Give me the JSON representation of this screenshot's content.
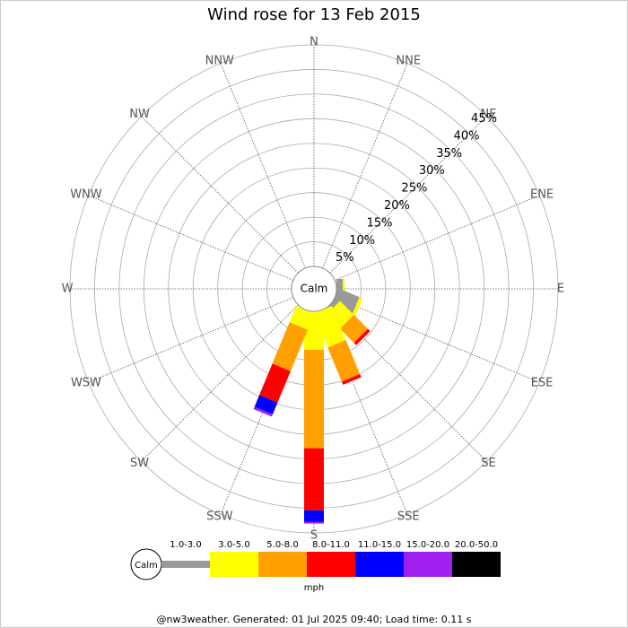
{
  "chart_data": {
    "type": "windrose",
    "title": "Wind rose for 13 Feb 2015",
    "categories": [
      "N",
      "NNE",
      "NE",
      "ENE",
      "E",
      "ESE",
      "SE",
      "SSE",
      "S",
      "SSW",
      "SW",
      "WSW",
      "W",
      "WNW",
      "NW",
      "NNW"
    ],
    "calm_label": "Calm",
    "series": [
      {
        "name": "1.0-3.0",
        "color": "#999999",
        "values": [
          0,
          0,
          0,
          0,
          1.3,
          4.6,
          0.9,
          0,
          0,
          0,
          0,
          0,
          0,
          0,
          0,
          0
        ]
      },
      {
        "name": "3.0-5.0",
        "color": "#ffff00",
        "values": [
          0,
          0,
          0,
          0,
          0.4,
          0.7,
          4,
          7.5,
          7.8,
          3.6,
          0,
          0,
          0,
          0,
          0,
          0
        ]
      },
      {
        "name": "5.0-8.0",
        "color": "#ffa000",
        "values": [
          0,
          0,
          0,
          0,
          0,
          0,
          4,
          7.5,
          20,
          9.1,
          0,
          0,
          0,
          0,
          0,
          0
        ]
      },
      {
        "name": "8.0-11.0",
        "color": "#ff0000",
        "values": [
          0,
          0,
          0,
          0,
          0,
          0,
          0.7,
          0.7,
          12.6,
          6.9,
          0,
          0,
          0,
          0,
          0,
          0
        ]
      },
      {
        "name": "11.0-15.0",
        "color": "#0000ff",
        "values": [
          0,
          0,
          0,
          0,
          0,
          0,
          0,
          0,
          2.4,
          2.6,
          0,
          0,
          0,
          0,
          0,
          0
        ]
      },
      {
        "name": "15.0-20.0",
        "color": "#a020f0",
        "values": [
          0,
          0,
          0,
          0,
          0,
          0,
          0,
          0,
          0.3,
          0.5,
          0,
          0,
          0,
          0,
          0,
          0
        ]
      },
      {
        "name": "20.0-50.0",
        "color": "#000000",
        "values": [
          0,
          0,
          0,
          0,
          0,
          0,
          0,
          0,
          0,
          0,
          0,
          0,
          0,
          0,
          0,
          0
        ]
      }
    ],
    "rlim": [
      0,
      45
    ],
    "rticks": [
      {
        "value": 5,
        "label": "5%"
      },
      {
        "value": 10,
        "label": "10%"
      },
      {
        "value": 15,
        "label": "15%"
      },
      {
        "value": 20,
        "label": "20%"
      },
      {
        "value": 25,
        "label": "25%"
      },
      {
        "value": 30,
        "label": "30%"
      },
      {
        "value": 35,
        "label": "35%"
      },
      {
        "value": 40,
        "label": "40%"
      },
      {
        "value": 45,
        "label": "45%"
      }
    ],
    "unit_label": "mph",
    "footer": "@nw3weather. Generated: 01 Jul 2025 09:40; Load time: 0.11 s"
  }
}
